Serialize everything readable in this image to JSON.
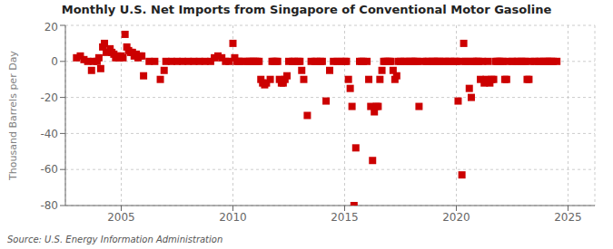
{
  "chart_data": {
    "type": "scatter",
    "title": "Monthly U.S. Net Imports from Singapore of Conventional Motor Gasoline",
    "ylabel": "Thousand Barrels per Day",
    "annotation": "Source: U.S. Energy Information Administration",
    "color": "#cc0000",
    "marker": "square",
    "grid": true,
    "xlim": [
      2002.5,
      2026.2
    ],
    "xticks": [
      2005,
      2010,
      2015,
      2020,
      2025
    ],
    "ylim": [
      -80,
      20
    ],
    "yticks": [
      -80,
      -60,
      -40,
      -20,
      0,
      20
    ],
    "x": [
      2003.0,
      2003.17,
      2003.33,
      2003.5,
      2003.67,
      2003.75,
      2003.92,
      2004.0,
      2004.08,
      2004.17,
      2004.25,
      2004.33,
      2004.5,
      2004.58,
      2004.67,
      2004.75,
      2004.83,
      2004.92,
      2005.0,
      2005.08,
      2005.17,
      2005.25,
      2005.33,
      2005.42,
      2005.5,
      2005.58,
      2005.67,
      2005.75,
      2005.83,
      2005.92,
      2006.0,
      2006.25,
      2006.5,
      2006.75,
      2006.92,
      2007.0,
      2007.25,
      2007.5,
      2007.75,
      2008.0,
      2008.25,
      2008.5,
      2008.75,
      2009.0,
      2009.17,
      2009.33,
      2009.5,
      2009.67,
      2009.83,
      2010.0,
      2010.08,
      2010.17,
      2010.25,
      2010.33,
      2010.5,
      2010.67,
      2010.75,
      2010.83,
      2010.92,
      2011.0,
      2011.08,
      2011.17,
      2011.25,
      2011.33,
      2011.42,
      2011.5,
      2011.67,
      2011.75,
      2011.83,
      2011.92,
      2012.0,
      2012.08,
      2012.17,
      2012.25,
      2012.33,
      2012.42,
      2012.5,
      2012.67,
      2012.75,
      2012.92,
      2013.0,
      2013.08,
      2013.17,
      2013.33,
      2013.5,
      2013.67,
      2013.75,
      2013.92,
      2014.0,
      2014.17,
      2014.33,
      2014.5,
      2014.67,
      2014.83,
      2015.0,
      2015.08,
      2015.17,
      2015.25,
      2015.33,
      2015.42,
      2015.5,
      2015.67,
      2015.75,
      2015.83,
      2016.0,
      2016.08,
      2016.17,
      2016.25,
      2016.33,
      2016.42,
      2016.5,
      2016.58,
      2016.67,
      2016.75,
      2016.83,
      2016.92,
      2017.0,
      2017.08,
      2017.17,
      2017.25,
      2017.33,
      2017.42,
      2017.5,
      2017.67,
      2017.75,
      2017.92,
      2018.0,
      2018.08,
      2018.17,
      2018.25,
      2018.33,
      2018.5,
      2018.67,
      2018.75,
      2018.92,
      2019.0,
      2019.08,
      2019.17,
      2019.25,
      2019.42,
      2019.5,
      2019.67,
      2019.75,
      2019.92,
      2020.0,
      2020.08,
      2020.17,
      2020.25,
      2020.33,
      2020.42,
      2020.5,
      2020.58,
      2020.67,
      2020.75,
      2020.83,
      2020.92,
      2021.0,
      2021.08,
      2021.17,
      2021.25,
      2021.33,
      2021.42,
      2021.5,
      2021.58,
      2021.67,
      2021.75,
      2021.83,
      2021.92,
      2022.0,
      2022.08,
      2022.17,
      2022.25,
      2022.33,
      2022.5,
      2022.67,
      2022.75,
      2022.92,
      2023.0,
      2023.08,
      2023.17,
      2023.25,
      2023.33,
      2023.5,
      2023.67,
      2023.75,
      2023.92,
      2024.0,
      2024.08,
      2024.17,
      2024.25,
      2024.33,
      2024.5
    ],
    "values": [
      2,
      3,
      1,
      0,
      -5,
      0,
      0,
      2,
      -4,
      8,
      10,
      5,
      7,
      5,
      4,
      2,
      3,
      2,
      3,
      2,
      15,
      8,
      6,
      5,
      5,
      3,
      4,
      2,
      3,
      3,
      -8,
      0,
      0,
      -10,
      -5,
      0,
      0,
      0,
      0,
      0,
      0,
      0,
      0,
      0,
      2,
      3,
      2,
      0,
      0,
      10,
      2,
      0,
      0,
      0,
      0,
      0,
      0,
      0,
      0,
      0,
      0,
      0,
      -10,
      -12,
      -13,
      -12,
      -10,
      0,
      0,
      0,
      0,
      -10,
      -12,
      -12,
      -10,
      -8,
      0,
      0,
      0,
      0,
      0,
      -5,
      -10,
      -30,
      0,
      0,
      0,
      0,
      0,
      -22,
      -5,
      0,
      0,
      0,
      0,
      0,
      -10,
      -15,
      -25,
      -80,
      -48,
      0,
      0,
      0,
      0,
      -10,
      -25,
      -55,
      -28,
      -25,
      -25,
      -10,
      -5,
      0,
      0,
      0,
      0,
      0,
      -5,
      -10,
      -8,
      0,
      0,
      0,
      0,
      0,
      0,
      0,
      0,
      0,
      -25,
      0,
      0,
      0,
      0,
      0,
      0,
      0,
      0,
      0,
      0,
      0,
      0,
      0,
      0,
      -22,
      0,
      -63,
      10,
      0,
      0,
      -15,
      -20,
      0,
      0,
      0,
      0,
      -10,
      0,
      -12,
      -10,
      0,
      -12,
      -10,
      -10,
      0,
      0,
      0,
      0,
      0,
      -10,
      -10,
      0,
      0,
      0,
      0,
      0,
      0,
      0,
      -10,
      -10,
      0,
      0,
      0,
      0,
      0,
      0,
      0,
      0,
      0,
      0,
      0
    ]
  }
}
